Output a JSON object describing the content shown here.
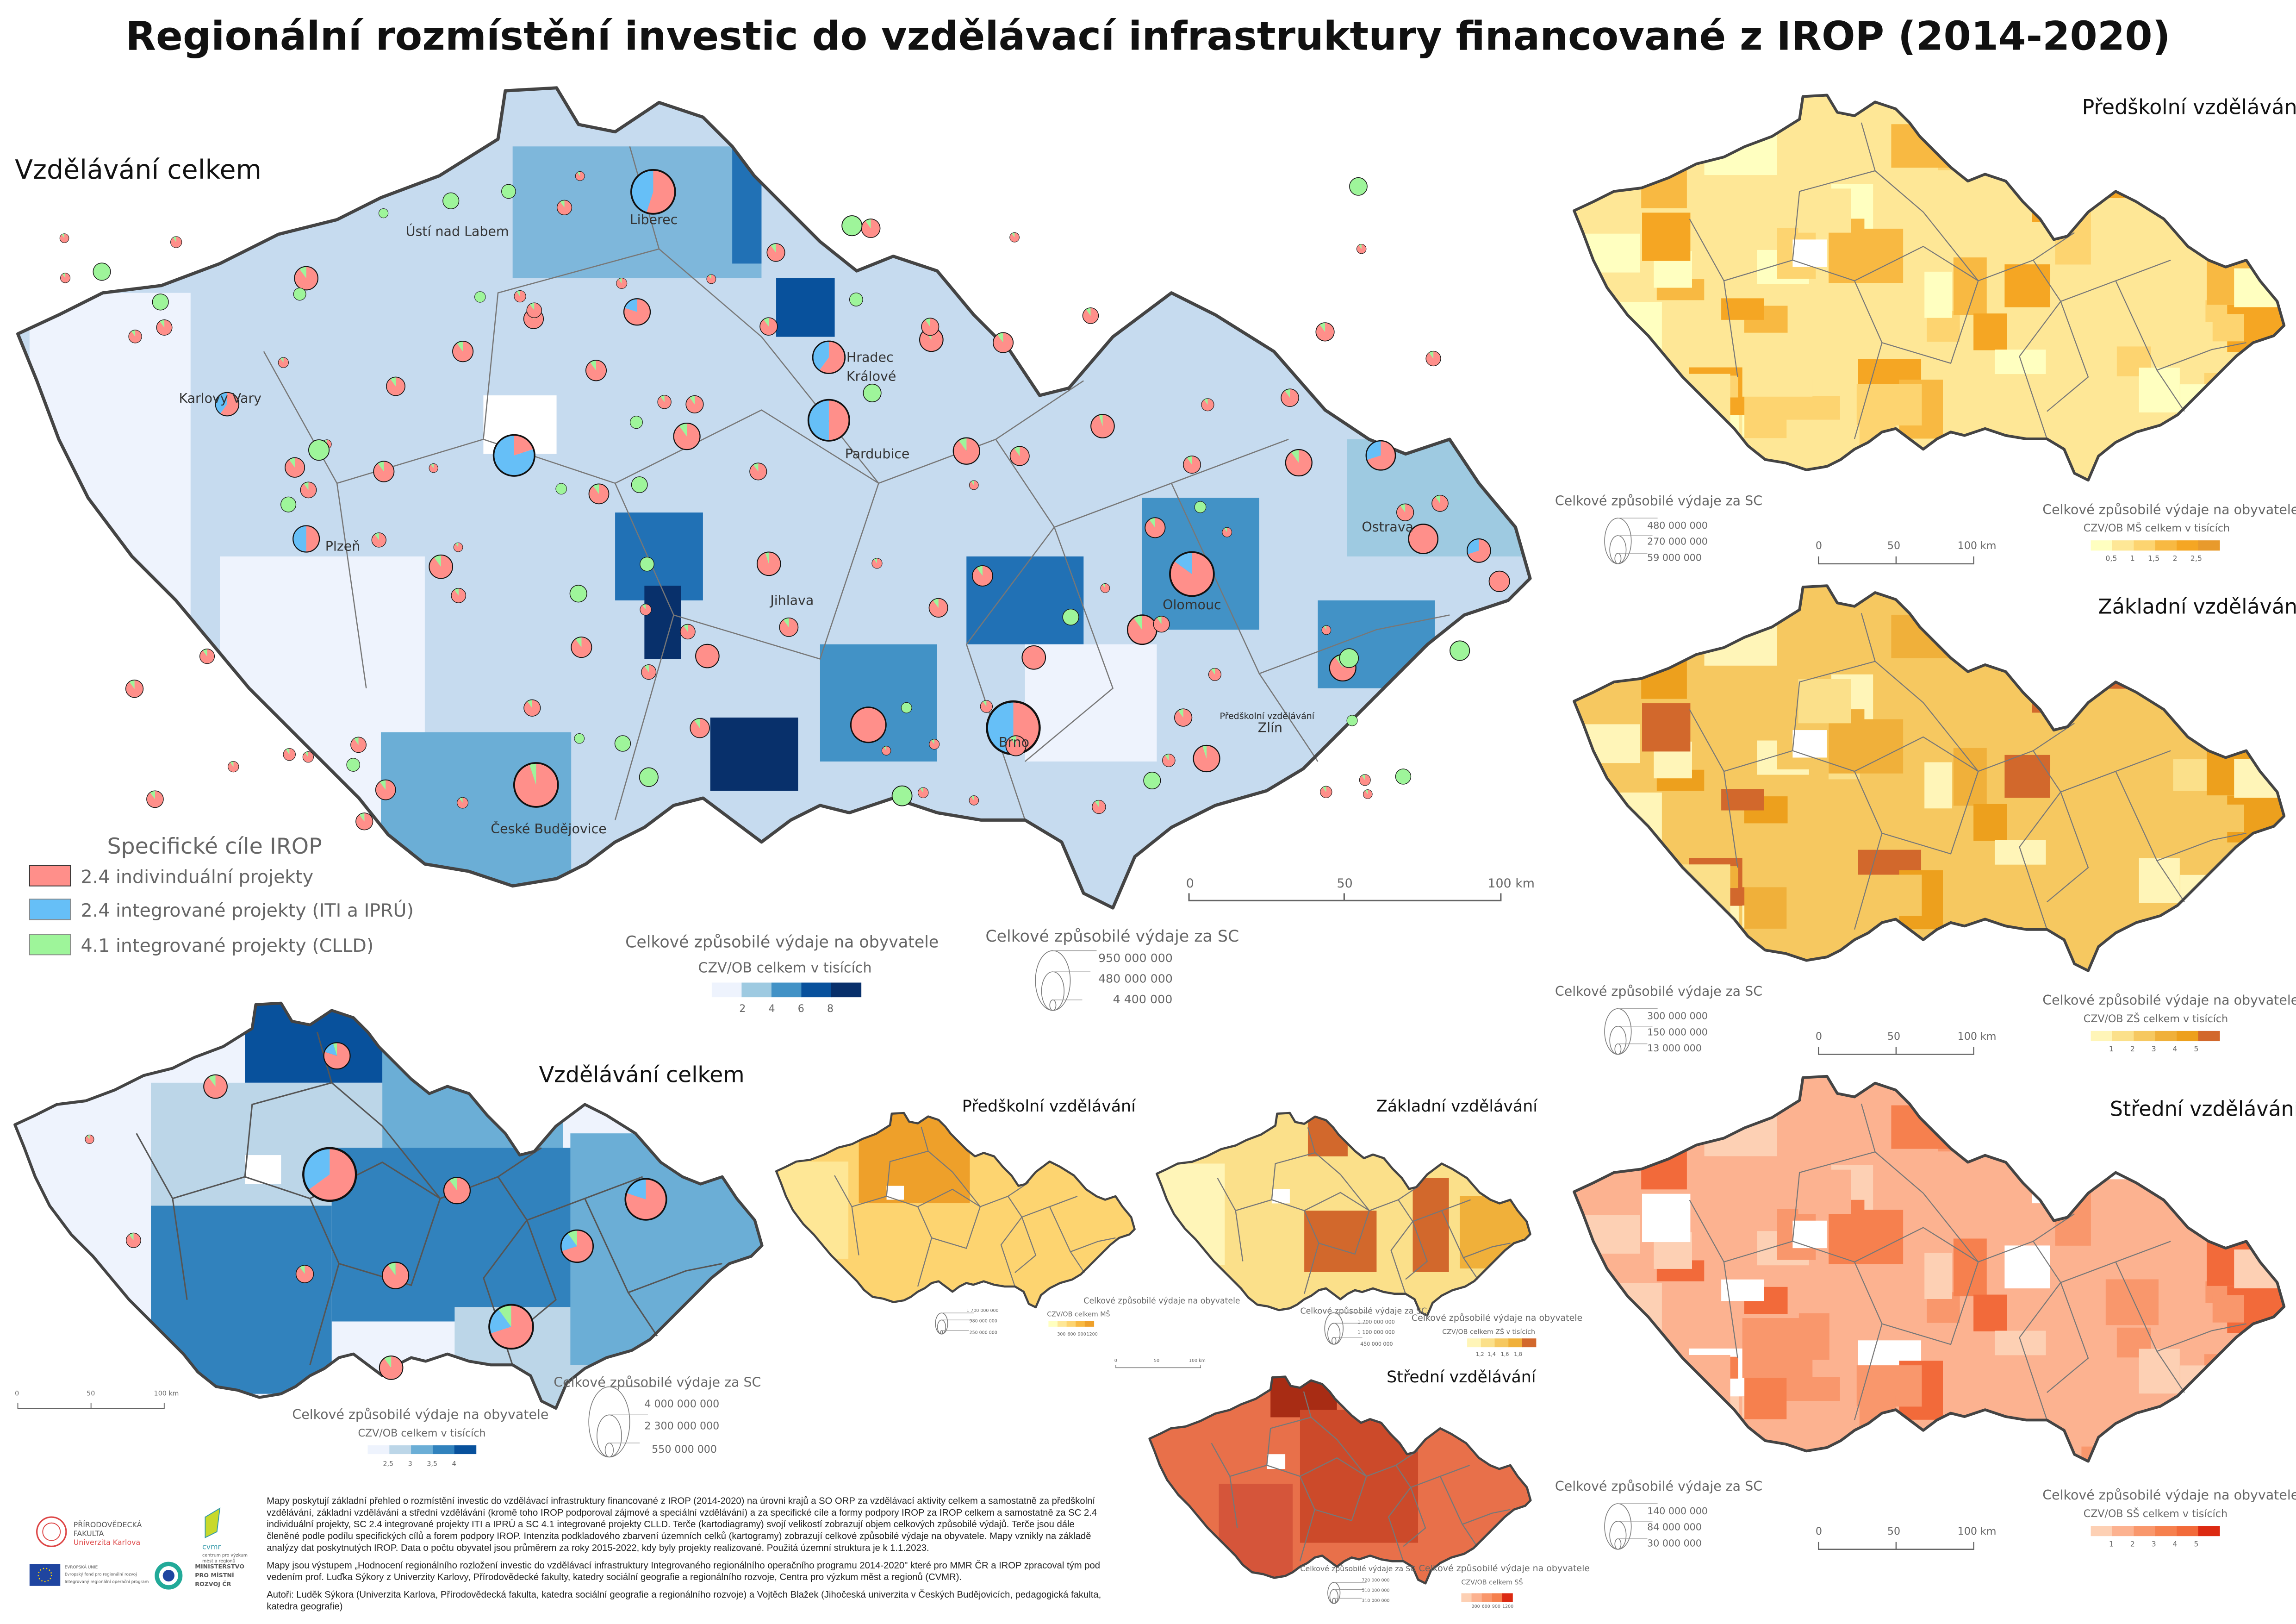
{
  "title": "Regionální rozmístění investic do vzdělávací infrastruktury financované z IROP (2014-2020)",
  "colors": {
    "individual": "#ff8f8a",
    "integrated_iti_ipru": "#66bff7",
    "integrated_clld": "#9ef59a",
    "blue_scale": [
      "#eef3fd",
      "#9ecae1",
      "#4292c6",
      "#08519c",
      "#08306b"
    ],
    "blue_scale_small": [
      "#eef3fd",
      "#bcd6e8",
      "#6baed6",
      "#3182bd",
      "#08519c"
    ],
    "ms_scale_small": [
      "#ffffc0",
      "#fee796",
      "#fdd470",
      "#f8b942",
      "#eea02a"
    ],
    "ms_scale": [
      "#ffffc0",
      "#fee796",
      "#fdd470",
      "#f8b942",
      "#f5a623",
      "#e89a2c"
    ],
    "zs_scale_small": [
      "#fff5b8",
      "#fbe08a",
      "#f6c860",
      "#f0b03a",
      "#d2682c"
    ],
    "zs_scale": [
      "#fff5b8",
      "#fbe08a",
      "#f6c860",
      "#f0b03a",
      "#eda01d",
      "#d2682c"
    ],
    "ss_scale_small": [
      "#fdd0b4",
      "#fcb290",
      "#f9976c",
      "#f6804e",
      "#dc2a12"
    ],
    "ss_scale": [
      "#fdd0b4",
      "#fcb290",
      "#f9976c",
      "#f6804e",
      "#f26a3a",
      "#dc2a12"
    ]
  },
  "main_map": {
    "heading": "Vzdělávání celkem",
    "cities": [
      "Liberec",
      "Ústí nad Labem",
      "Karlovy Vary",
      "Hradec",
      "Králové",
      "Pardubice",
      "Plzeň",
      "Jihlava",
      "Olomouc",
      "Ostrava",
      "Zlín",
      "Brno",
      "České Budějovice"
    ],
    "stray_label": "Předškolní vzdělávání",
    "legend_goals": {
      "title": "Specifické cíle IROP",
      "items": [
        "2.4 indivinduální projekty",
        "2.4 integrované projekty (ITI a IPRÚ)",
        "4.1 integrované projekty (CLLD)"
      ]
    },
    "legend_choropleth": {
      "title": "Celkové způsobilé výdaje na obyvatele",
      "subtitle": "CZV/OB celkem v tisících",
      "ticks": [
        "2",
        "4",
        "6",
        "8"
      ]
    },
    "legend_size": {
      "title": "Celkové způsobilé výdaje za SC",
      "values": [
        "950 000 000",
        "480 000 000",
        "4 400 000"
      ]
    },
    "scale": [
      "0",
      "50",
      "100 km"
    ]
  },
  "overview_map": {
    "heading": "Vzdělávání celkem",
    "legend_choropleth": {
      "title": "Celkové způsobilé výdaje na obyvatele",
      "subtitle": "CZV/OB celkem v tisících",
      "ticks": [
        "2,5",
        "3",
        "3,5",
        "4"
      ]
    },
    "legend_size": {
      "title": "Celkové způsobilé výdaje za SC",
      "values": [
        "4 000 000 000",
        "2 300 000 000",
        "550 000 000"
      ]
    },
    "scale": [
      "0",
      "50",
      "100 km"
    ]
  },
  "small_ms": {
    "heading": "Předškolní vzdělávání",
    "legend_size": {
      "values": [
        "1 700 000 000",
        "980 000 000",
        "250 000 000"
      ]
    },
    "legend_choropleth": {
      "title": "Celkové způsobilé výdaje na obyvatele",
      "subtitle": "CZV/OB celkem MŠ",
      "ticks": [
        "300",
        "600",
        "900",
        "1200"
      ]
    },
    "scale": [
      "0",
      "50",
      "100 km"
    ]
  },
  "small_zs": {
    "heading": "Základní vzdělávání",
    "legend_size": {
      "title": "Celkové způsobilé výdaje za SC",
      "values": [
        "1 700 000 000",
        "1 100 000 000",
        "450 000 000"
      ]
    },
    "legend_choropleth": {
      "title": "Celkové způsobilé výdaje na obyvatele",
      "subtitle": "CZV/OB celkem ZŠ v tisících",
      "ticks": [
        "1,2",
        "1,4",
        "1,6",
        "1,8"
      ]
    }
  },
  "small_ss": {
    "heading": "Střední vzdělávání",
    "legend_size": {
      "title": "Celkové způsobilé výdaje za SC",
      "values": [
        "720 000 000",
        "510 000 000",
        "310 000 000"
      ]
    },
    "legend_choropleth": {
      "title": "Celkové způsobilé výdaje na obyvatele",
      "subtitle": "CZV/OB celkem SŠ",
      "ticks": [
        "300",
        "600",
        "900",
        "1200"
      ]
    }
  },
  "right_ms": {
    "heading": "Předškolní vzdělávání",
    "legend_size": {
      "title": "Celkové způsobilé výdaje za SC",
      "values": [
        "480 000 000",
        "270 000 000",
        "59 000 000"
      ]
    },
    "legend_choropleth": {
      "title": "Celkové způsobilé výdaje na obyvatele",
      "subtitle": "CZV/OB MŠ celkem v tisících",
      "ticks": [
        "0,5",
        "1",
        "1,5",
        "2",
        "2,5"
      ]
    },
    "scale": [
      "0",
      "50",
      "100 km"
    ]
  },
  "right_zs": {
    "heading": "Základní vzdělávání",
    "legend_size": {
      "title": "Celkové způsobilé výdaje za SC",
      "values": [
        "300 000 000",
        "150 000 000",
        "13 000 000"
      ]
    },
    "legend_choropleth": {
      "title": "Celkové způsobilé výdaje na obyvatele",
      "subtitle": "CZV/OB ZŠ celkem v tisících",
      "ticks": [
        "1",
        "2",
        "3",
        "4",
        "5"
      ]
    },
    "scale": [
      "0",
      "50",
      "100 km"
    ]
  },
  "right_ss": {
    "heading": "Střední vzdělávání",
    "legend_size": {
      "title": "Celkové způsobilé výdaje za SC",
      "values": [
        "140 000 000",
        "84 000 000",
        "30 000 000"
      ]
    },
    "legend_choropleth": {
      "title": "Celkové způsobilé výdaje na obyvatele",
      "subtitle": "CZV/OB SŠ celkem v tisících",
      "ticks": [
        "1",
        "2",
        "3",
        "4",
        "5"
      ]
    },
    "scale": [
      "0",
      "50",
      "100 km"
    ]
  },
  "footer": {
    "paragraph1": [
      "Mapy poskytují základní přehled o rozmístění investic do vzdělávací infrastruktury financované z IROP (2014-2020) na úrovni krajů a SO ORP za vzdělávací aktivity celkem a samostatně za předškolní",
      "vzdělávání, základní vzdělávání a střední vzdělávání (kromě toho IROP podporoval zájmové a speciální vzdělávání) a za specifické cíle a formy podpory IROP za IROP celkem a samostatně za SC 2.4",
      "individuální projekty, SC 2.4 integrované projekty ITI a IPRÚ a SC 4.1 integrované projekty CLLD. Terče (kartodiagramy) svojí velikostí zobrazují objem celkových způsobilé výdajů. Terče jsou dále",
      "členěné podle podílu specifických cílů a forem podpory IROP. Intenzita podkladového zbarvení územních celků (kartogramy) zobrazují celkové způsobilé výdaje na obyvatele. Mapy vznikly na základě",
      "analýzy dat poskytnutých IROP. Data o počtu obyvatel jsou průměrem za roky 2015-2022, kdy byly projekty realizované. Použitá územní struktura je k 1.1.2023."
    ],
    "paragraph2": [
      "Mapy jsou výstupem „Hodnocení regionálního rozložení investic do vzdělávací infrastruktury Integrovaného regionálního operačního programu 2014-2020\" které pro MMR ČR a IROP zpracoval tým pod",
      "vedením prof. Luďka Sýkory z Univerzity Karlovy, Přírodovědecké fakulty, katedry sociální geografie a regionálního rozvoje, Centra pro výzkum měst a regionů (CVMR)."
    ],
    "paragraph3": [
      "Autoři: Luděk Sýkora (Univerzita Karlova, Přírodovědecká fakulta, katedra sociální geografie a regionálního rozvoje) a Vojtěch Blažek (Jihočeská univerzita v Českých Budějovicích, pedagogická fakulta,",
      "katedra geografie)"
    ],
    "logos": {
      "faculty": [
        "PŘÍRODOVĚDECKÁ",
        "FAKULTA",
        "Univerzita Karlova"
      ],
      "cvmr": [
        "cvmr",
        "centrum pro výzkum",
        "měst a regionů"
      ],
      "eu": [
        "EVROPSKÁ UNIE",
        "Evropský fond pro regionální rozvoj",
        "Integrovaný regionální operační program"
      ],
      "mmr": [
        "MINISTERSTVO",
        "PRO MÍSTNÍ",
        "ROZVOJ ČR"
      ]
    }
  }
}
